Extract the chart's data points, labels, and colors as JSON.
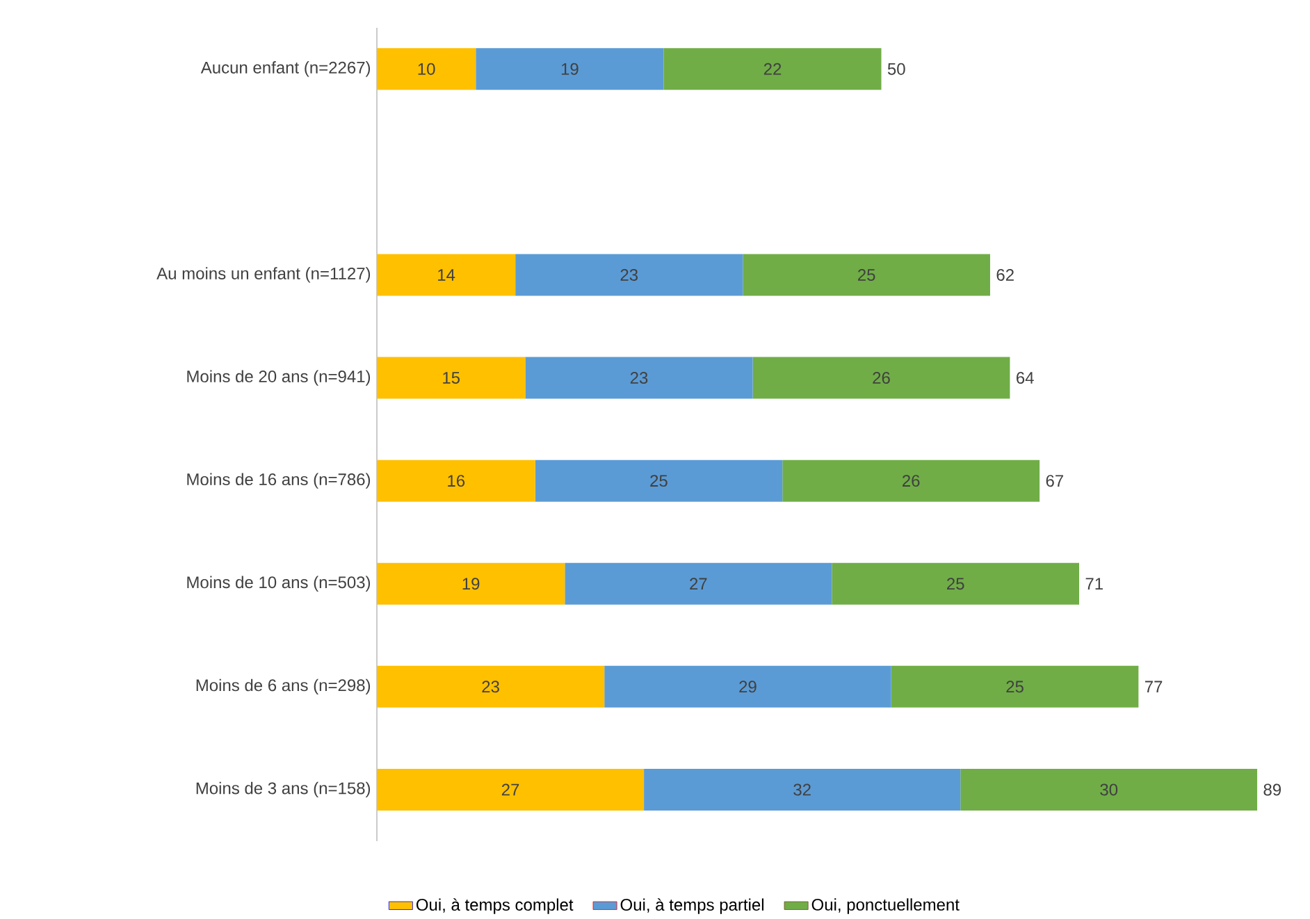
{
  "chart_data": {
    "type": "bar",
    "orientation": "horizontal",
    "stacked": true,
    "data_labels": true,
    "legend": "bottom",
    "categories": [
      "Aucun enfant (n=2267)",
      null,
      "Au moins un enfant (n=1127)",
      "Moins de 20 ans (n=941)",
      "Moins de 16 ans (n=786)",
      "Moins de 10 ans (n=503)",
      "Moins de 6 ans (n=298)",
      "Moins de 3 ans (n=158)"
    ],
    "series": [
      {
        "name": "Oui, à temps complet",
        "color": "#ffc000",
        "values": [
          10,
          null,
          14,
          15,
          16,
          19,
          23,
          27
        ]
      },
      {
        "name": "Oui, à temps partiel",
        "color": "#5b9bd5",
        "values": [
          19,
          null,
          23,
          23,
          25,
          27,
          29,
          32
        ]
      },
      {
        "name": "Oui, ponctuellement",
        "color": "#70ad47",
        "values": [
          22,
          null,
          25,
          26,
          26,
          25,
          25,
          30
        ]
      }
    ],
    "totals": [
      "50",
      null,
      "62",
      "64",
      "67",
      "71",
      "77",
      "89"
    ]
  }
}
